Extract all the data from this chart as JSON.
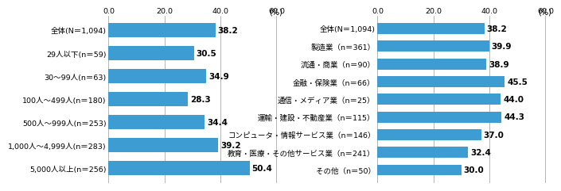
{
  "left_categories": [
    "全体(N＝1,094)",
    "29人以下(n＝59)",
    "30～99人(n＝63)",
    "100人～499人(n＝180)",
    "500人～999人(n＝253)",
    "1,000人～4,999人(n＝283)",
    "5,000人以上(n＝256)"
  ],
  "left_values": [
    38.2,
    30.5,
    34.9,
    28.3,
    34.4,
    39.2,
    50.4
  ],
  "right_categories": [
    "全体(N＝1,094)",
    "製造業（n＝361）",
    "流通・商業（n＝90）",
    "金融・保険業（n＝66）",
    "通信・メディア業（n＝25）",
    "運輸・建設・不動産業（n＝115）",
    "コンピュータ・情報サービス業（n＝146）",
    "教育・医療・その他サービス業（n＝241）",
    "その他（n＝50）"
  ],
  "right_values": [
    38.2,
    39.9,
    38.9,
    45.5,
    44.0,
    44.3,
    37.0,
    32.4,
    30.0
  ],
  "bar_color": "#3d9cd2",
  "xlim": [
    0,
    62
  ],
  "xticks": [
    0.0,
    20.0,
    40.0,
    60.0
  ],
  "xlabel_unit": "(%)",
  "grid_color": "#999999",
  "value_fontsize": 7.5,
  "label_fontsize": 6.8,
  "tick_fontsize": 6.8,
  "bar_height": 0.62
}
